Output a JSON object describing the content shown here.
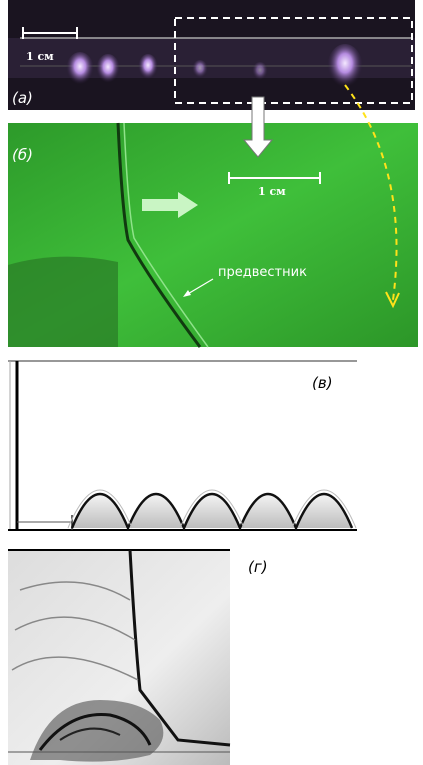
{
  "panels": [
    {
      "label": "(а)",
      "scale_bar": "1 см"
    },
    {
      "label": "(б)",
      "scale_bar": "1 см",
      "annotation": "предвестник"
    },
    {
      "label": "(в)"
    },
    {
      "label": "(г)"
    }
  ]
}
